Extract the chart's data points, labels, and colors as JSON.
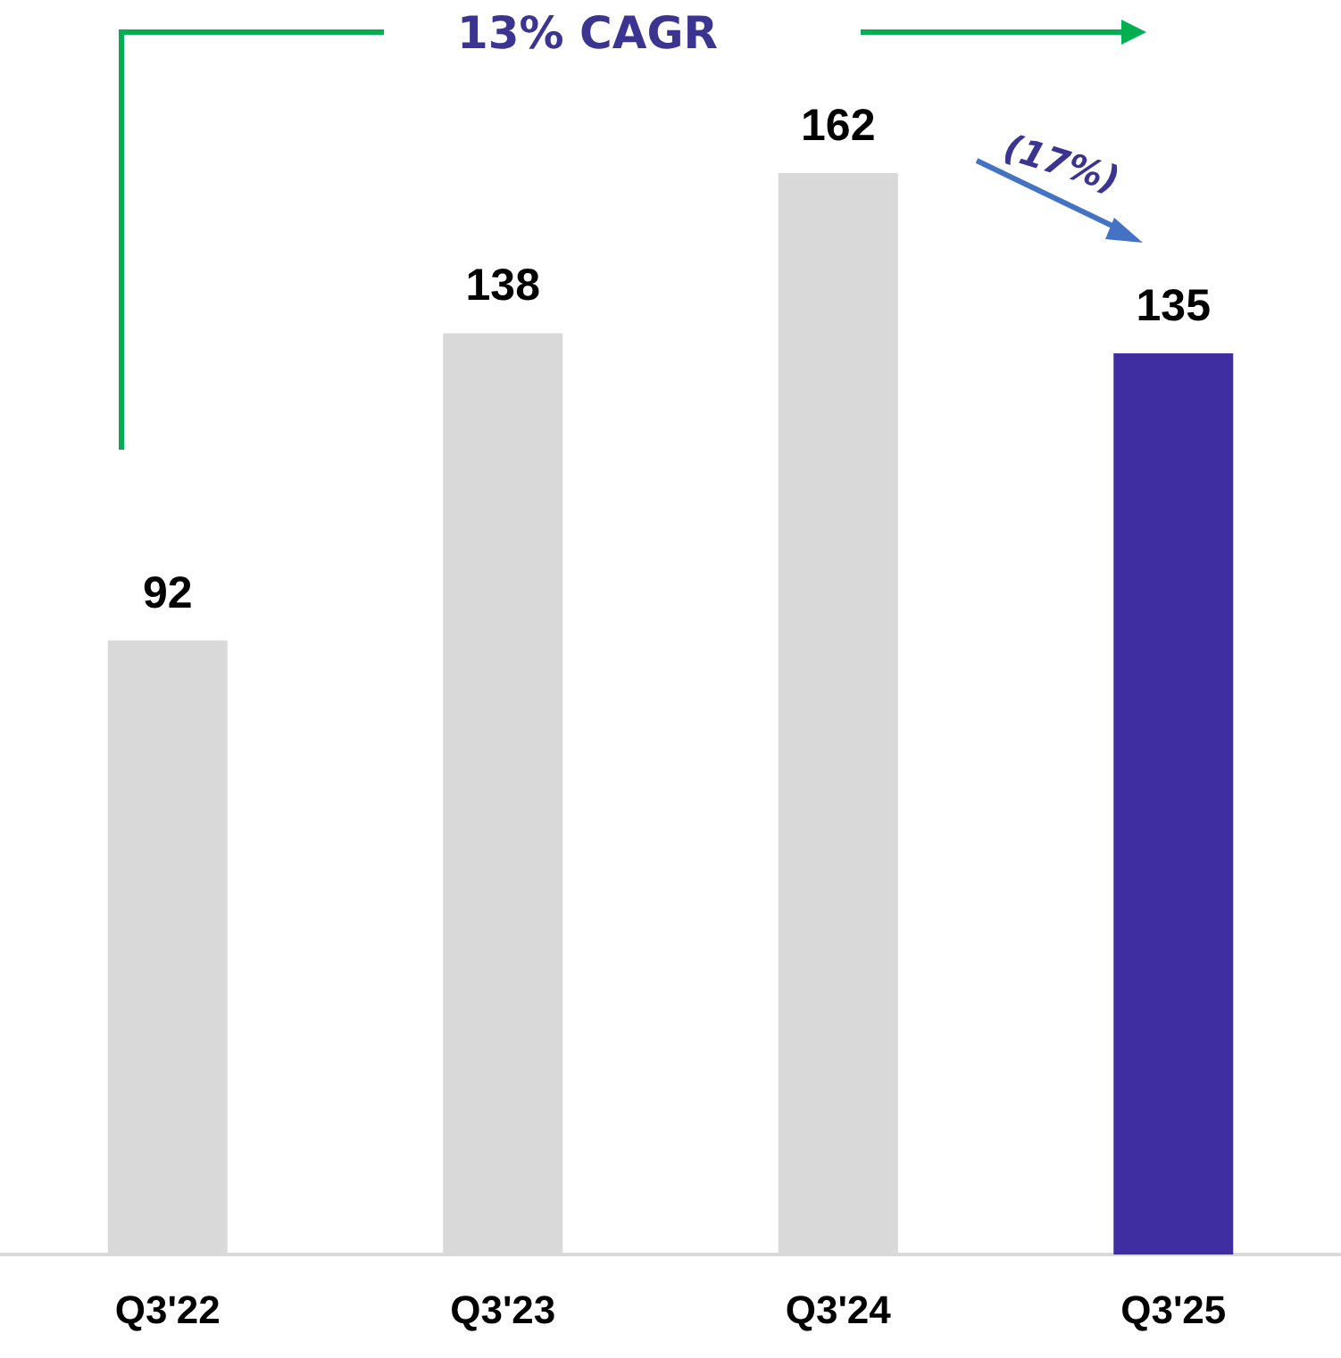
{
  "chart_data": {
    "type": "bar",
    "categories": [
      "Q3'22",
      "Q3'23",
      "Q3'24",
      "Q3'25"
    ],
    "values": [
      92,
      138,
      162,
      135
    ],
    "colors": [
      "#d9d9d9",
      "#d9d9d9",
      "#d9d9d9",
      "#3e2ea1"
    ],
    "data_labels": true,
    "annotations": [
      "13% CAGR",
      "(17%)"
    ]
  }
}
